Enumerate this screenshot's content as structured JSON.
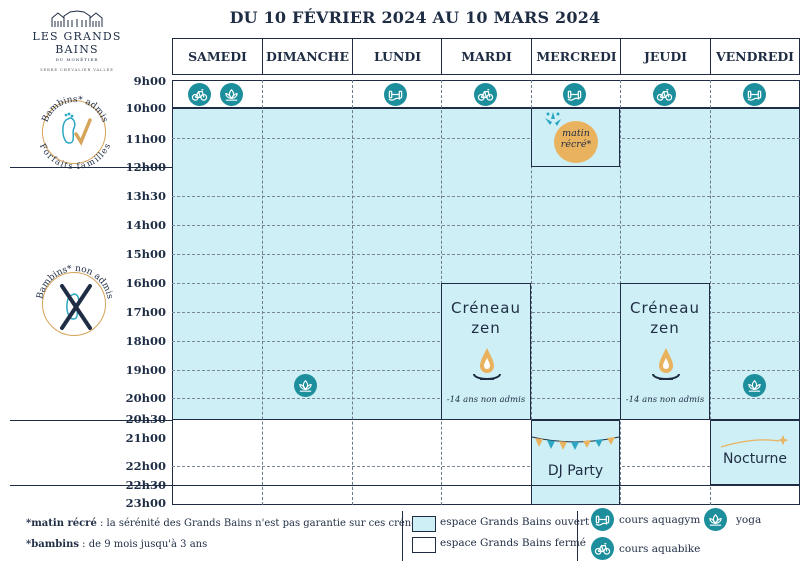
{
  "header": {
    "title": "DU 10 FÉVRIER 2024 AU 10 MARS 2024",
    "logo_name": "LES GRANDS BAINS",
    "logo_sub": "DU MONÊTIER",
    "logo_tagline": "SERRE CHEVALIER VALLÉE"
  },
  "days": [
    "SAMEDI",
    "DIMANCHE",
    "LUNDI",
    "MARDI",
    "MERCREDI",
    "JEUDI",
    "VENDREDI"
  ],
  "times": [
    "9h00",
    "10h00",
    "11h00",
    "12h00",
    "13h30",
    "14h00",
    "15h00",
    "16h00",
    "17h00",
    "18h00",
    "19h00",
    "20h00",
    "20h30",
    "21h00",
    "22h00",
    "22h30",
    "23h00"
  ],
  "side_badges": {
    "admitted": {
      "top": "Bambins* admis",
      "bottom": "Forfaits familles"
    },
    "not_admitted": {
      "top": "Bambins* non admis"
    }
  },
  "activities": {
    "matin_recre": "matin récré*",
    "zen_title_1": "Créneau",
    "zen_title_2": "zen",
    "zen_note": "-14 ans non admis",
    "dj_party": "DJ Party",
    "nocturne": "Nocturne"
  },
  "footnotes": {
    "matin_key": "*matin récré",
    "matin_text": " : la sérénité des Grands Bains n'est pas garantie sur ces créneaux",
    "bambins_key": "*bambins",
    "bambins_text": " : de 9 mois jusqu'à 3 ans"
  },
  "legend": {
    "open": "espace Grands Bains ouvert",
    "closed": "espace Grands Bains fermé",
    "aquagym": "cours aquagym",
    "yoga": "yoga",
    "aquabike": "cours aquabike"
  },
  "colors": {
    "navy": "#1f2d44",
    "open_bg": "#cdeff5",
    "teal": "#1d8e9c",
    "gold": "#d6a45a"
  },
  "icons": [
    "bike-icon",
    "lotus-icon",
    "dumbbell-icon",
    "drop-icon",
    "bunting-icon",
    "star-icon"
  ]
}
